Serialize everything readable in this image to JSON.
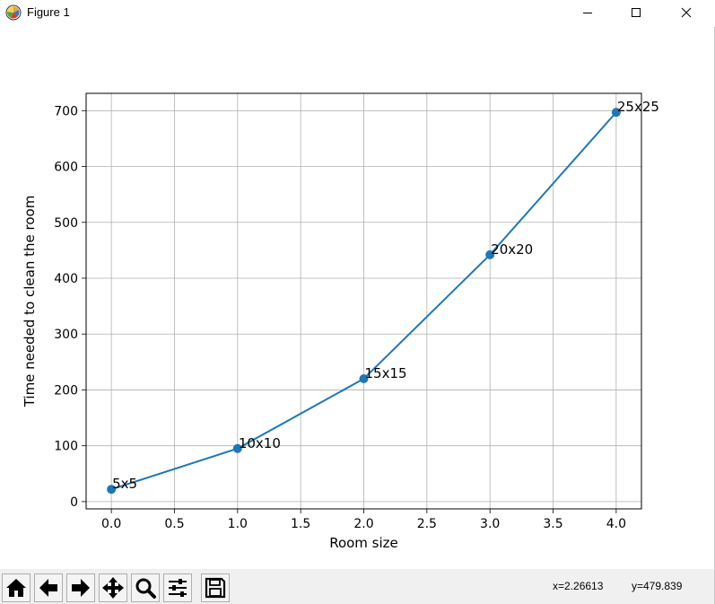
{
  "window": {
    "title": "Figure 1",
    "app_icon": "matplotlib-logo-icon",
    "controls": [
      "minimize-icon",
      "maximize-icon",
      "close-icon"
    ]
  },
  "chart_data": {
    "type": "line",
    "title": "",
    "xlabel": "Room size",
    "ylabel": "Time needed to clean the room",
    "x": [
      0,
      1,
      2,
      3,
      4
    ],
    "y": [
      22,
      95,
      220,
      442,
      697
    ],
    "point_labels": [
      "5x5",
      "10x10",
      "15x15",
      "20x20",
      "25x25"
    ],
    "xlim": [
      -0.2,
      4.2
    ],
    "ylim": [
      -13,
      731
    ],
    "xticks": [
      0.0,
      0.5,
      1.0,
      1.5,
      2.0,
      2.5,
      3.0,
      3.5,
      4.0
    ],
    "xtick_labels": [
      "0.0",
      "0.5",
      "1.0",
      "1.5",
      "2.0",
      "2.5",
      "3.0",
      "3.5",
      "4.0"
    ],
    "yticks": [
      0,
      100,
      200,
      300,
      400,
      500,
      600,
      700
    ],
    "ytick_labels": [
      "0",
      "100",
      "200",
      "300",
      "400",
      "500",
      "600",
      "700"
    ],
    "grid": true,
    "marker": "circle",
    "line_color": "#1f77b4"
  },
  "toolbar": {
    "buttons": [
      {
        "name": "home-icon",
        "tooltip": "Home"
      },
      {
        "name": "back-arrow-icon",
        "tooltip": "Back"
      },
      {
        "name": "forward-arrow-icon",
        "tooltip": "Forward"
      },
      {
        "name": "pan-move-icon",
        "tooltip": "Pan"
      },
      {
        "name": "zoom-magnifier-icon",
        "tooltip": "Zoom"
      },
      {
        "name": "subplots-config-icon",
        "tooltip": "Configure subplots"
      },
      {
        "name": "save-floppy-icon",
        "tooltip": "Save"
      }
    ],
    "cursor_x": "x=2.26613",
    "cursor_y": "y=479.839"
  }
}
